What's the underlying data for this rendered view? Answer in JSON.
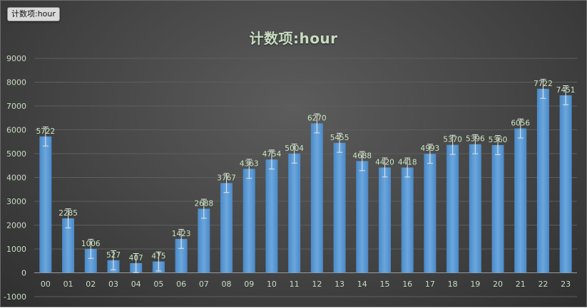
{
  "field_tag": "计数项:hour",
  "chart_data": {
    "type": "bar",
    "title": "计数项:hour",
    "categories": [
      "00",
      "01",
      "02",
      "03",
      "04",
      "05",
      "06",
      "07",
      "08",
      "09",
      "10",
      "11",
      "12",
      "13",
      "14",
      "15",
      "16",
      "17",
      "18",
      "19",
      "20",
      "21",
      "22",
      "23"
    ],
    "values": [
      5722,
      2285,
      1006,
      527,
      407,
      475,
      1423,
      2688,
      3767,
      4363,
      4754,
      5004,
      6270,
      5455,
      4688,
      4420,
      4418,
      4993,
      5370,
      5396,
      5360,
      6056,
      7722,
      7451
    ],
    "ylim": [
      -1000,
      9000
    ],
    "yticks": [
      "9000",
      "8000",
      "7000",
      "6000",
      "5000",
      "4000",
      "3000",
      "2000",
      "1000",
      "0",
      "-1000"
    ],
    "grid": true,
    "error_bars": true,
    "bar_color": "#5b9bd5",
    "text_color": "#c9e6bf"
  }
}
